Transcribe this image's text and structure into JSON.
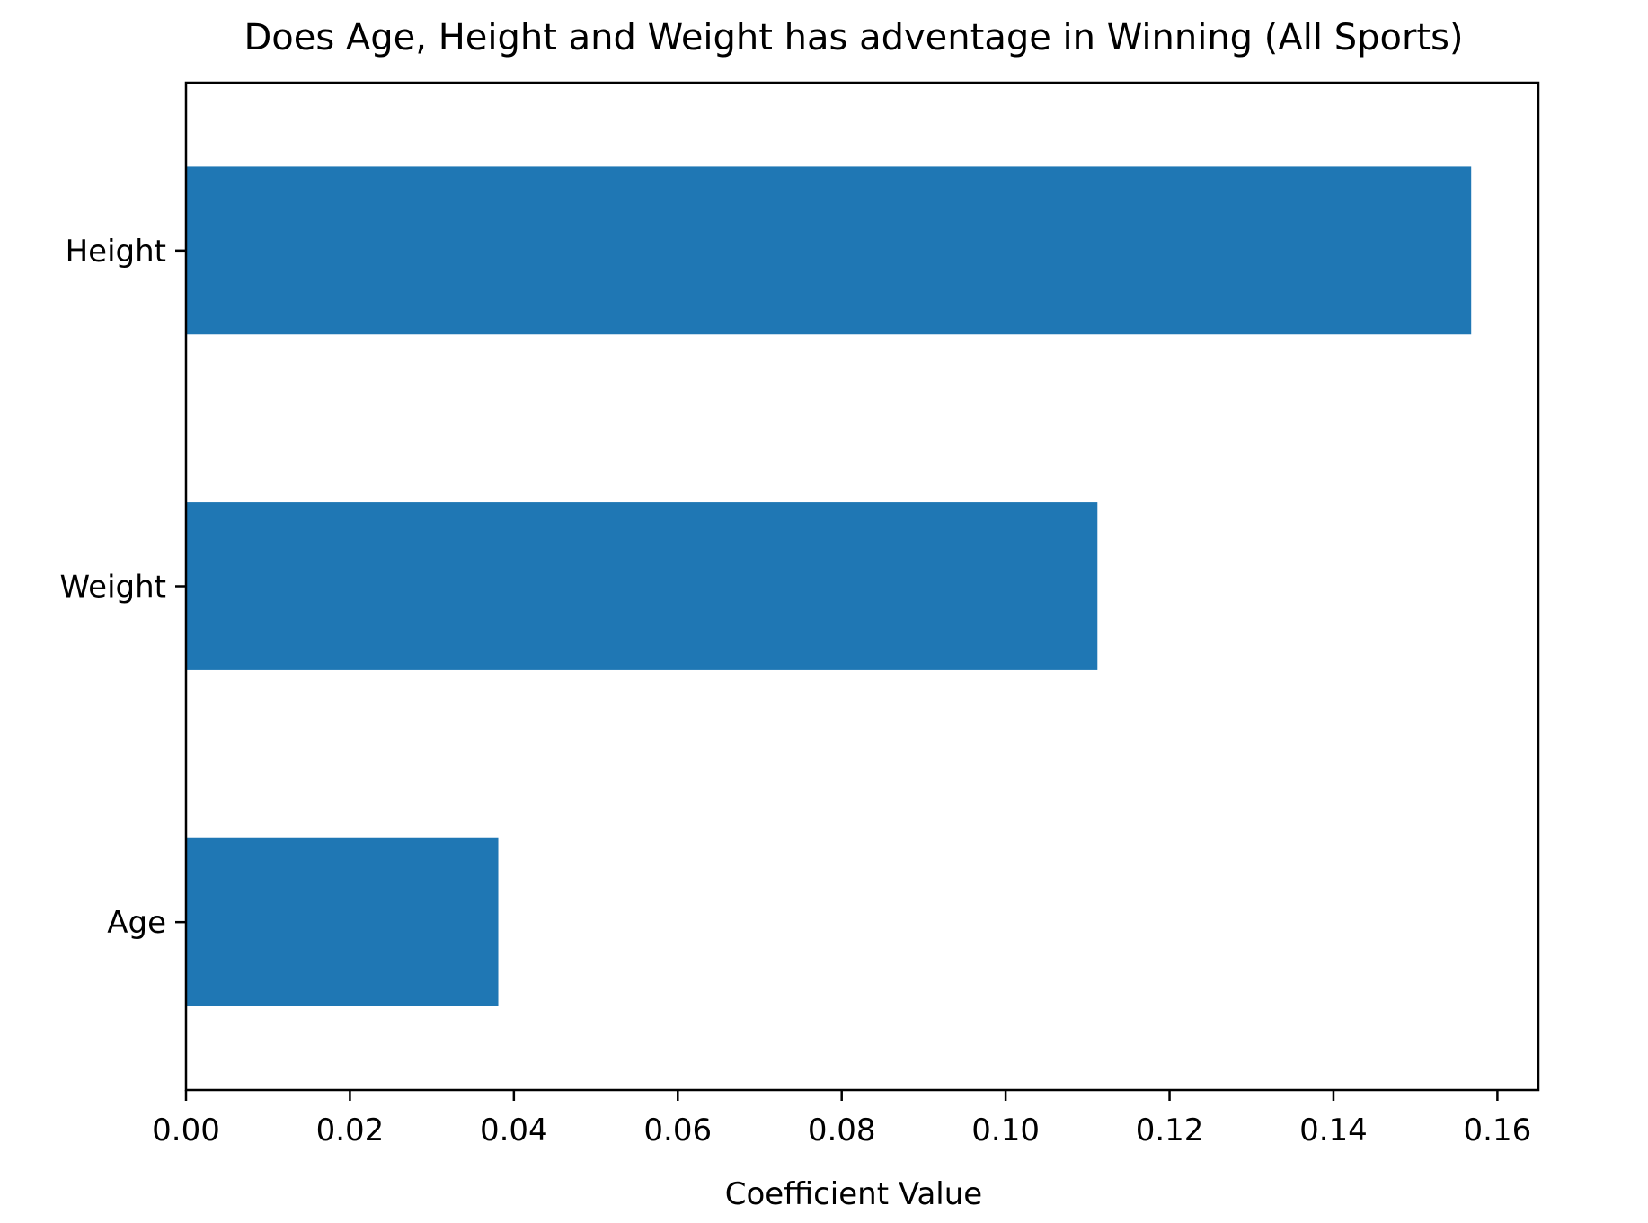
{
  "chart_data": {
    "type": "bar",
    "orientation": "horizontal",
    "title": "Does Age, Height and Weight has adventage in Winning (All Sports)",
    "xlabel": "Coefficient Value",
    "ylabel": "",
    "categories": [
      "Age",
      "Weight",
      "Height"
    ],
    "values": [
      0.0381,
      0.1112,
      0.1568
    ],
    "xlim": [
      0,
      0.165
    ],
    "xticks": [
      0.0,
      0.02,
      0.04,
      0.06,
      0.08,
      0.1,
      0.12,
      0.14,
      0.16
    ],
    "xtick_labels": [
      "0.00",
      "0.02",
      "0.04",
      "0.06",
      "0.08",
      "0.10",
      "0.12",
      "0.14",
      "0.16"
    ],
    "grid": false,
    "legend": "none",
    "bar_color": "#1f77b4",
    "axis_color": "#000000"
  }
}
